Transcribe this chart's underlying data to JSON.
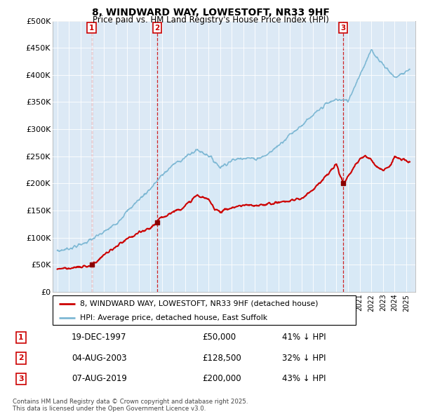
{
  "title": "8, WINDWARD WAY, LOWESTOFT, NR33 9HF",
  "subtitle": "Price paid vs. HM Land Registry's House Price Index (HPI)",
  "ylabel_ticks": [
    "£0",
    "£50K",
    "£100K",
    "£150K",
    "£200K",
    "£250K",
    "£300K",
    "£350K",
    "£400K",
    "£450K",
    "£500K"
  ],
  "ytick_values": [
    0,
    50000,
    100000,
    150000,
    200000,
    250000,
    300000,
    350000,
    400000,
    450000,
    500000
  ],
  "ylim": [
    0,
    500000
  ],
  "hpi_color": "#7eb8d4",
  "hpi_fill_color": "#d6eaf8",
  "price_color": "#cc0000",
  "sale_marker_color": "#8b0000",
  "dashed_line_color": "#cc0000",
  "background_color": "#ffffff",
  "grid_color": "#c8d8e8",
  "legend_box_color": "#cc0000",
  "transactions": [
    {
      "number": 1,
      "date_label": "19-DEC-1997",
      "year": 1997.96,
      "price": 50000,
      "pct_label": "41% ↓ HPI"
    },
    {
      "number": 2,
      "date_label": "04-AUG-2003",
      "year": 2003.59,
      "price": 128500,
      "pct_label": "32% ↓ HPI"
    },
    {
      "number": 3,
      "date_label": "07-AUG-2019",
      "year": 2019.59,
      "price": 200000,
      "pct_label": "43% ↓ HPI"
    }
  ],
  "legend_entries": [
    "8, WINDWARD WAY, LOWESTOFT, NR33 9HF (detached house)",
    "HPI: Average price, detached house, East Suffolk"
  ],
  "footer_text": "Contains HM Land Registry data © Crown copyright and database right 2025.\nThis data is licensed under the Open Government Licence v3.0.",
  "table_rows": [
    {
      "number": 1,
      "date": "19-DEC-1997",
      "price": "£50,000",
      "pct": "41% ↓ HPI"
    },
    {
      "number": 2,
      "date": "04-AUG-2003",
      "price": "£128,500",
      "pct": "32% ↓ HPI"
    },
    {
      "number": 3,
      "date": "07-AUG-2019",
      "price": "£200,000",
      "pct": "43% ↓ HPI"
    }
  ],
  "hpi_anchor_years": [
    1995,
    1996,
    1997,
    1998,
    1999,
    2000,
    2001,
    2002,
    2003,
    2004,
    2005,
    2006,
    2007,
    2008,
    2009,
    2010,
    2011,
    2012,
    2013,
    2014,
    2015,
    2016,
    2017,
    2018,
    2019,
    2020,
    2021,
    2022,
    2023,
    2024,
    2025.3
  ],
  "hpi_anchor_prices": [
    75000,
    80000,
    87000,
    97000,
    110000,
    125000,
    148000,
    170000,
    190000,
    215000,
    235000,
    248000,
    262000,
    252000,
    230000,
    242000,
    248000,
    245000,
    252000,
    270000,
    290000,
    307000,
    325000,
    345000,
    355000,
    352000,
    400000,
    445000,
    420000,
    395000,
    410000
  ],
  "pp_anchor_years": [
    1995,
    1997,
    1997.96,
    1998.5,
    1999,
    2000,
    2001,
    2002,
    2003,
    2003.59,
    2004,
    2005,
    2006,
    2007,
    2008,
    2008.5,
    2009,
    2010,
    2011,
    2012,
    2013,
    2014,
    2015,
    2016,
    2017,
    2018,
    2019,
    2019.59,
    2020,
    2020.5,
    2021,
    2021.5,
    2022,
    2022.5,
    2023,
    2023.5,
    2024,
    2024.5,
    2025.3
  ],
  "pp_anchor_prices": [
    43000,
    45000,
    50000,
    58000,
    68000,
    82000,
    97000,
    108000,
    118000,
    128500,
    138000,
    148000,
    158000,
    178000,
    170000,
    155000,
    148000,
    155000,
    160000,
    158000,
    162000,
    165000,
    168000,
    172000,
    190000,
    210000,
    235000,
    200000,
    210000,
    230000,
    245000,
    250000,
    245000,
    230000,
    225000,
    230000,
    248000,
    245000,
    240000
  ]
}
